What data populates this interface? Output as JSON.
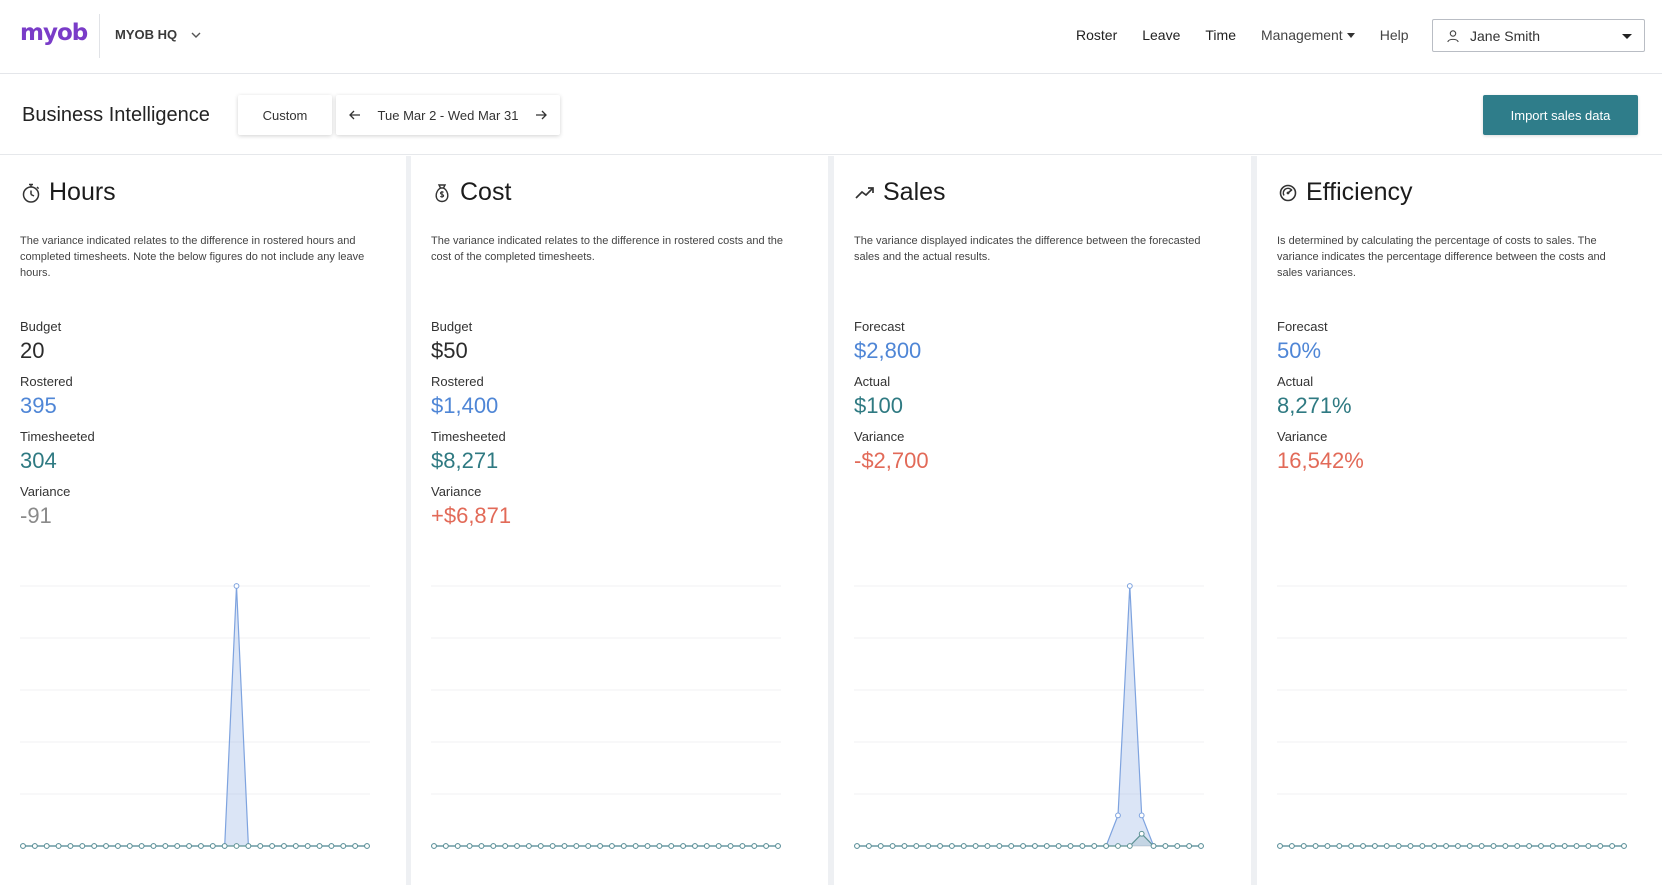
{
  "brand": {
    "logo_text": "myob",
    "org_name": "MYOB HQ"
  },
  "nav": {
    "links": [
      "Roster",
      "Leave",
      "Time"
    ],
    "management_label": "Management",
    "help_label": "Help",
    "user_name": "Jane Smith"
  },
  "subheader": {
    "title": "Business Intelligence",
    "custom_label": "Custom",
    "date_range": "Tue Mar 2 - Wed Mar 31",
    "import_label": "Import sales data"
  },
  "colors": {
    "accent": "#2f7d8a",
    "blue": "#4f86d6",
    "teal": "#2f7a82",
    "red": "#e26a58",
    "gray": "#8a8a8a"
  },
  "cards": [
    {
      "title": "Hours",
      "icon": "stopwatch-icon",
      "description": "The variance indicated relates to the difference in rostered hours and completed timesheets. Note the below figures do not include any leave hours.",
      "metrics": [
        {
          "label": "Budget",
          "value": "20"
        },
        {
          "label": "Rostered",
          "value": "395"
        },
        {
          "label": "Timesheeted",
          "value": "304"
        },
        {
          "label": "Variance",
          "value": "-91"
        }
      ]
    },
    {
      "title": "Cost",
      "icon": "money-bag-icon",
      "description": "The variance indicated relates to the difference in rostered costs and the cost of the completed timesheets.",
      "metrics": [
        {
          "label": "Budget",
          "value": "$50"
        },
        {
          "label": "Rostered",
          "value": "$1,400"
        },
        {
          "label": "Timesheeted",
          "value": "$8,271"
        },
        {
          "label": "Variance",
          "value": "+$6,871"
        }
      ]
    },
    {
      "title": "Sales",
      "icon": "trend-up-icon",
      "description": "The variance displayed indicates the difference between the forecasted sales and the actual results.",
      "metrics": [
        {
          "label": "Forecast",
          "value": "$2,800"
        },
        {
          "label": "Actual",
          "value": "$100"
        },
        {
          "label": "Variance",
          "value": "-$2,700"
        }
      ]
    },
    {
      "title": "Efficiency",
      "icon": "efficiency-gauge-icon",
      "description": "Is determined by calculating the percentage of costs to sales. The variance indicates the percentage difference between the costs and sales variances.",
      "metrics": [
        {
          "label": "Forecast",
          "value": "50%"
        },
        {
          "label": "Actual",
          "value": "8,271%"
        },
        {
          "label": "Variance",
          "value": "16,542%"
        }
      ]
    }
  ],
  "chart_data": [
    {
      "type": "area",
      "x": [
        2,
        3,
        4,
        5,
        6,
        7,
        8,
        9,
        10,
        11,
        12,
        13,
        14,
        15,
        16,
        17,
        18,
        19,
        20,
        21,
        22,
        23,
        24,
        25,
        26,
        27,
        28,
        29,
        30,
        31
      ],
      "series": [
        {
          "values": [
            0,
            0,
            0,
            0,
            0,
            0,
            0,
            0,
            0,
            0,
            0,
            0,
            0,
            0,
            0,
            0,
            0,
            0,
            1.5,
            0,
            0,
            0,
            0,
            0,
            0,
            0,
            0,
            0,
            0,
            0
          ]
        },
        {
          "values": [
            0,
            0,
            0,
            0,
            0,
            0,
            0,
            0,
            0,
            0,
            0,
            0,
            0,
            0,
            0,
            0,
            0,
            0,
            0,
            0,
            0,
            0,
            0,
            0,
            0,
            0,
            0,
            0,
            0,
            0
          ]
        }
      ]
    },
    {
      "type": "area",
      "x": [
        2,
        3,
        4,
        5,
        6,
        7,
        8,
        9,
        10,
        11,
        12,
        13,
        14,
        15,
        16,
        17,
        18,
        19,
        20,
        21,
        22,
        23,
        24,
        25,
        26,
        27,
        28,
        29,
        30,
        31
      ],
      "series": [
        {
          "values": [
            0,
            0,
            0,
            0,
            0,
            0,
            0,
            0,
            0,
            0,
            0,
            0,
            0,
            0,
            0,
            0,
            0,
            0,
            0,
            0,
            0,
            0,
            0,
            0,
            0,
            0,
            0,
            0,
            0,
            0
          ]
        },
        {
          "values": [
            0,
            0,
            0,
            0,
            0,
            0,
            0,
            0,
            0,
            0,
            0,
            0,
            0,
            0,
            0,
            0,
            0,
            0,
            0,
            0,
            0,
            0,
            0,
            0,
            0,
            0,
            0,
            0,
            0,
            0
          ]
        }
      ]
    },
    {
      "type": "area",
      "x": [
        2,
        3,
        4,
        5,
        6,
        7,
        8,
        9,
        10,
        11,
        12,
        13,
        14,
        15,
        16,
        17,
        18,
        19,
        20,
        21,
        22,
        23,
        24,
        25,
        26,
        27,
        28,
        29,
        30,
        31
      ],
      "series": [
        {
          "values": [
            0,
            0,
            0,
            0,
            0,
            0,
            0,
            0,
            0,
            0,
            0,
            0,
            0,
            0,
            0,
            0,
            0,
            0,
            0,
            0,
            0,
            0,
            1,
            8.5,
            1,
            0,
            0,
            0,
            0,
            0
          ]
        },
        {
          "values": [
            0,
            0,
            0,
            0,
            0,
            0,
            0,
            0,
            0,
            0,
            0,
            0,
            0,
            0,
            0,
            0,
            0,
            0,
            0,
            0,
            0,
            0,
            0,
            0,
            0.4,
            0,
            0,
            0,
            0,
            0
          ]
        }
      ]
    },
    {
      "type": "area",
      "x": [
        2,
        3,
        4,
        5,
        6,
        7,
        8,
        9,
        10,
        11,
        12,
        13,
        14,
        15,
        16,
        17,
        18,
        19,
        20,
        21,
        22,
        23,
        24,
        25,
        26,
        27,
        28,
        29,
        30,
        31
      ],
      "series": [
        {
          "values": [
            0,
            0,
            0,
            0,
            0,
            0,
            0,
            0,
            0,
            0,
            0,
            0,
            0,
            0,
            0,
            0,
            0,
            0,
            0,
            0,
            0,
            0,
            0,
            0,
            0,
            0,
            0,
            0,
            0,
            0
          ]
        },
        {
          "values": [
            0,
            0,
            0,
            0,
            0,
            0,
            0,
            0,
            0,
            0,
            0,
            0,
            0,
            0,
            0,
            0,
            0,
            0,
            0,
            0,
            0,
            0,
            0,
            0,
            0,
            0,
            0,
            0,
            0,
            0
          ]
        }
      ]
    }
  ]
}
